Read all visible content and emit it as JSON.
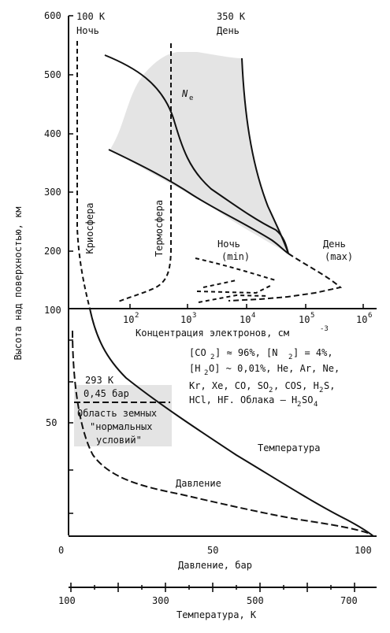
{
  "upper_panel": {
    "y_axis_label": "Высота над поверхностью, км",
    "y_ticks": [
      "600",
      "500",
      "400",
      "300",
      "200",
      "100"
    ],
    "x_axis_label": "Концентрация электронов, см",
    "x_axis_unit_exp": "-3",
    "x_ticks": [
      {
        "base": "10",
        "exp": "2"
      },
      {
        "base": "10",
        "exp": "3"
      },
      {
        "base": "10",
        "exp": "4"
      },
      {
        "base": "10",
        "exp": "5"
      },
      {
        "base": "10",
        "exp": "6"
      }
    ],
    "night_temp": "100 K",
    "night_label": "Ночь",
    "day_temp": "350 K",
    "day_label": "День",
    "cryosphere_label": "Криосфера",
    "thermosphere_label": "Термосфера",
    "ne_label": "N",
    "ne_sub": "e",
    "night_min_label": "Ночь",
    "night_min_sub": "(min)",
    "day_max_label": "День",
    "day_max_sub": "(max)"
  },
  "lower_panel": {
    "y_ticks": [
      "50"
    ],
    "surface_temp": "293 K",
    "surface_pressure": "0,45 бар",
    "earth_conditions_line1": "Область земных",
    "earth_conditions_line2": "\"нормальных",
    "earth_conditions_line3": "условий\"",
    "composition": {
      "co2": "[CO",
      "co2_sub": "2",
      "co2_val": "] ≈ 96%, [N",
      "n2_sub": "2",
      "n2_val": "] = 4%,",
      "h2o": "[H",
      "h2o_sub": "2",
      "h2o_val": "O] ~ 0,01%, He, Ar, Ne,",
      "line3a": "Kr, Xe, CO, SO",
      "so2_sub": "2",
      "line3b": ", COS, H",
      "h2s_sub": "2",
      "line3c": "S,",
      "line4a": "HCl, HF. Облака — H",
      "h2so4_sub1": "2",
      "line4b": "SO",
      "h2so4_sub2": "4"
    },
    "temperature_curve_label": "Температура",
    "pressure_curve_label": "Давление"
  },
  "pressure_axis": {
    "ticks": [
      "0",
      "50",
      "100"
    ],
    "label": "Давление, бар"
  },
  "temperature_axis": {
    "ticks": [
      "100",
      "300",
      "500",
      "700"
    ],
    "label": "Температура, К"
  }
}
